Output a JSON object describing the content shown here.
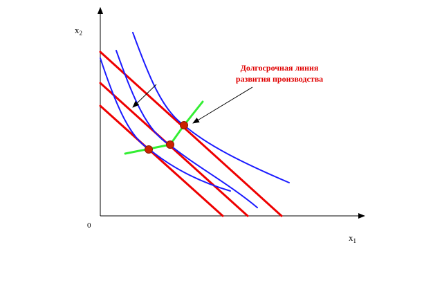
{
  "axes": {
    "y_label_main": "x",
    "y_label_sub": "2",
    "x_label_main": "x",
    "x_label_sub": "1",
    "origin_label": "0"
  },
  "annotation": {
    "line1": "Долгосрочная линия",
    "line2": "развития производства"
  },
  "colors": {
    "isoquant": "#1a1aff",
    "isocost": "#ee0000",
    "expansion_path": "#33ee33",
    "tangency_point": "#cc2200",
    "axis": "#000000",
    "annotation_text": "#e00000"
  },
  "elements": {
    "isoquants": 3,
    "isocost_lines": 3,
    "tangency_points": 3,
    "expansion_path_segments": 3
  }
}
